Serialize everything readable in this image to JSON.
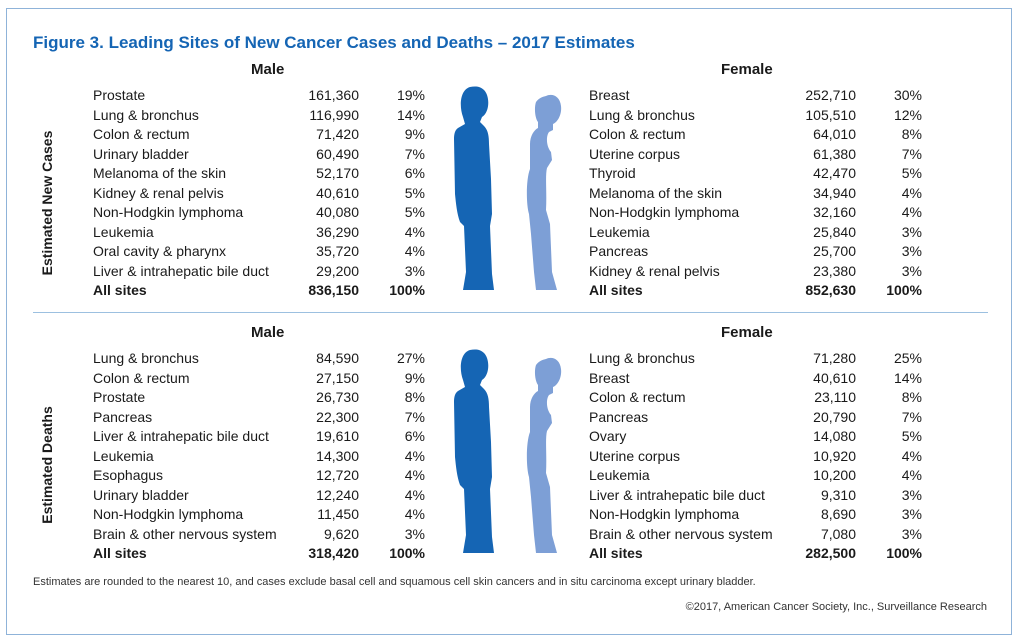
{
  "title": "Figure 3. Leading Sites of New Cancer Cases and Deaths – 2017 Estimates",
  "colors": {
    "title": "#1565b4",
    "male_figure": "#1565b4",
    "female_figure": "#7d9fd6",
    "border": "#8fb3d9"
  },
  "chart_data": {
    "type": "table",
    "title": "Figure 3. Leading Sites of New Cancer Cases and Deaths – 2017 Estimates",
    "sections": [
      {
        "label": "Estimated New Cases",
        "male": {
          "header": "Male",
          "rows": [
            {
              "site": "Prostate",
              "count": "161,360",
              "pct": "19%"
            },
            {
              "site": "Lung & bronchus",
              "count": "116,990",
              "pct": "14%"
            },
            {
              "site": "Colon & rectum",
              "count": "71,420",
              "pct": "9%"
            },
            {
              "site": "Urinary bladder",
              "count": "60,490",
              "pct": "7%"
            },
            {
              "site": "Melanoma of the skin",
              "count": "52,170",
              "pct": "6%"
            },
            {
              "site": "Kidney & renal pelvis",
              "count": "40,610",
              "pct": "5%"
            },
            {
              "site": "Non-Hodgkin lymphoma",
              "count": "40,080",
              "pct": "5%"
            },
            {
              "site": "Leukemia",
              "count": "36,290",
              "pct": "4%"
            },
            {
              "site": "Oral cavity & pharynx",
              "count": "35,720",
              "pct": "4%"
            },
            {
              "site": "Liver & intrahepatic bile duct",
              "count": "29,200",
              "pct": "3%"
            }
          ],
          "total": {
            "site": "All sites",
            "count": "836,150",
            "pct": "100%"
          }
        },
        "female": {
          "header": "Female",
          "rows": [
            {
              "site": "Breast",
              "count": "252,710",
              "pct": "30%"
            },
            {
              "site": "Lung & bronchus",
              "count": "105,510",
              "pct": "12%"
            },
            {
              "site": "Colon & rectum",
              "count": "64,010",
              "pct": "8%"
            },
            {
              "site": "Uterine corpus",
              "count": "61,380",
              "pct": "7%"
            },
            {
              "site": "Thyroid",
              "count": "42,470",
              "pct": "5%"
            },
            {
              "site": "Melanoma of the skin",
              "count": "34,940",
              "pct": "4%"
            },
            {
              "site": "Non-Hodgkin lymphoma",
              "count": "32,160",
              "pct": "4%"
            },
            {
              "site": "Leukemia",
              "count": "25,840",
              "pct": "3%"
            },
            {
              "site": "Pancreas",
              "count": "25,700",
              "pct": "3%"
            },
            {
              "site": "Kidney & renal pelvis",
              "count": "23,380",
              "pct": "3%"
            }
          ],
          "total": {
            "site": "All sites",
            "count": "852,630",
            "pct": "100%"
          }
        }
      },
      {
        "label": "Estimated Deaths",
        "male": {
          "header": "Male",
          "rows": [
            {
              "site": "Lung & bronchus",
              "count": "84,590",
              "pct": "27%"
            },
            {
              "site": "Colon & rectum",
              "count": "27,150",
              "pct": "9%"
            },
            {
              "site": "Prostate",
              "count": "26,730",
              "pct": "8%"
            },
            {
              "site": "Pancreas",
              "count": "22,300",
              "pct": "7%"
            },
            {
              "site": "Liver & intrahepatic bile duct",
              "count": "19,610",
              "pct": "6%"
            },
            {
              "site": "Leukemia",
              "count": "14,300",
              "pct": "4%"
            },
            {
              "site": "Esophagus",
              "count": "12,720",
              "pct": "4%"
            },
            {
              "site": "Urinary bladder",
              "count": "12,240",
              "pct": "4%"
            },
            {
              "site": "Non-Hodgkin lymphoma",
              "count": "11,450",
              "pct": "4%"
            },
            {
              "site": "Brain & other nervous system",
              "count": "9,620",
              "pct": "3%"
            }
          ],
          "total": {
            "site": "All sites",
            "count": "318,420",
            "pct": "100%"
          }
        },
        "female": {
          "header": "Female",
          "rows": [
            {
              "site": "Lung & bronchus",
              "count": "71,280",
              "pct": "25%"
            },
            {
              "site": "Breast",
              "count": "40,610",
              "pct": "14%"
            },
            {
              "site": "Colon & rectum",
              "count": "23,110",
              "pct": "8%"
            },
            {
              "site": "Pancreas",
              "count": "20,790",
              "pct": "7%"
            },
            {
              "site": "Ovary",
              "count": "14,080",
              "pct": "5%"
            },
            {
              "site": "Uterine corpus",
              "count": "10,920",
              "pct": "4%"
            },
            {
              "site": "Leukemia",
              "count": "10,200",
              "pct": "4%"
            },
            {
              "site": "Liver & intrahepatic bile duct",
              "count": "9,310",
              "pct": "3%"
            },
            {
              "site": "Non-Hodgkin lymphoma",
              "count": "8,690",
              "pct": "3%"
            },
            {
              "site": "Brain & other nervous system",
              "count": "7,080",
              "pct": "3%"
            }
          ],
          "total": {
            "site": "All sites",
            "count": "282,500",
            "pct": "100%"
          }
        }
      }
    ]
  },
  "footnote": "Estimates are rounded to the nearest 10, and cases exclude basal cell and squamous cell skin cancers and in situ carcinoma except urinary bladder.",
  "copyright": "©2017, American Cancer Society, Inc., Surveillance Research"
}
